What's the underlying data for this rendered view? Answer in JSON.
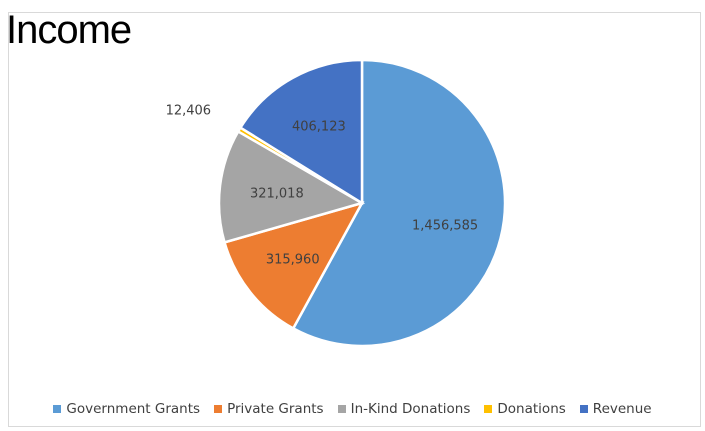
{
  "chart_data": {
    "type": "pie",
    "title": "Income",
    "slices": [
      {
        "label": "Government Grants",
        "value": 1456585,
        "value_label": "1,456,585",
        "color": "#5b9bd5"
      },
      {
        "label": "Private Grants",
        "value": 315960,
        "value_label": "315,960",
        "color": "#ed7d31"
      },
      {
        "label": "In-Kind Donations",
        "value": 321018,
        "value_label": "321,018",
        "color": "#a5a5a5"
      },
      {
        "label": "Donations",
        "value": 12406,
        "value_label": "12,406",
        "color": "#ffc000"
      },
      {
        "label": "Revenue",
        "value": 406123,
        "value_label": "406,123",
        "color": "#4472c4"
      }
    ],
    "legend_position": "bottom"
  }
}
